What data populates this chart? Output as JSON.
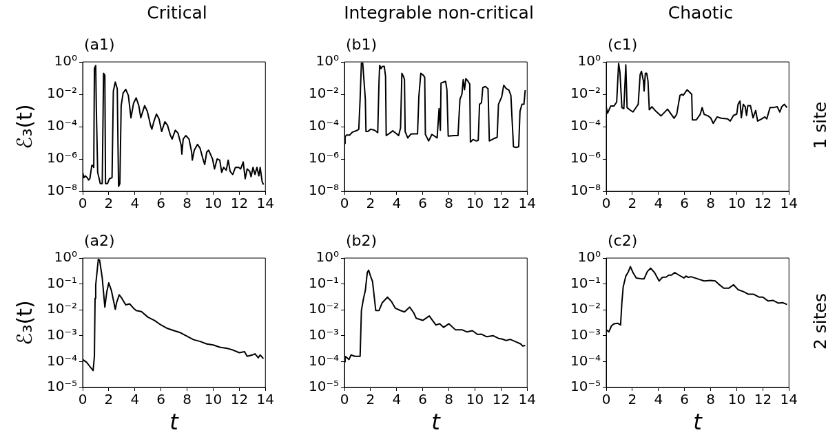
{
  "chart_data": [
    {
      "type": "line",
      "title": "Critical",
      "subtitle": "(a1)",
      "ylabel": "ℰ₃(t)",
      "log": "y",
      "marker": "none",
      "line_style": "solid",
      "xlim": [
        0,
        14
      ],
      "xticks": [
        0,
        2,
        4,
        6,
        8,
        10,
        12,
        14
      ],
      "ylim": [
        1e-08,
        1
      ],
      "yticks": [
        {
          "value": 1e-08,
          "label": "10⁻⁸"
        },
        {
          "value": 1e-06,
          "label": "10⁻⁶"
        },
        {
          "value": 0.0001,
          "label": "10⁻⁴"
        },
        {
          "value": 0.01,
          "label": "10⁻²"
        },
        {
          "value": 1,
          "label": "10⁰"
        }
      ],
      "series": [
        {
          "color": "#000000",
          "x": [
            0,
            0.1,
            0.2,
            0.35,
            0.45,
            0.55,
            0.7,
            0.75,
            0.85,
            0.9,
            1.0,
            1.05,
            1.15,
            1.35,
            1.5,
            1.6,
            1.7,
            1.75,
            1.9,
            2.05,
            2.25,
            2.35,
            2.5,
            2.65,
            2.75,
            2.85,
            2.95,
            3.1,
            3.3,
            3.5,
            3.7,
            3.9,
            4.1,
            4.3,
            4.45,
            4.75,
            4.95,
            5.2,
            5.3,
            5.45,
            5.65,
            5.85,
            6.05,
            6.3,
            6.5,
            6.7,
            6.85,
            7.1,
            7.3,
            7.55,
            7.6,
            7.7,
            7.9,
            8.15,
            8.35,
            8.4,
            8.55,
            8.8,
            9.0,
            9.2,
            9.35,
            9.5,
            9.65,
            9.95,
            10.1,
            10.3,
            10.5,
            10.65,
            10.8,
            11.0,
            11.15,
            11.3,
            11.5,
            11.7,
            11.95,
            12.1,
            12.3,
            12.45,
            12.6,
            12.8,
            12.9,
            13.05,
            13.2,
            13.35,
            13.5,
            13.6,
            13.75,
            13.85
          ],
          "values": [
            1.5e-07,
            7e-08,
            9e-08,
            7e-08,
            5e-08,
            6e-08,
            4e-07,
            4e-07,
            3e-07,
            0.4,
            0.6,
            0.001,
            1.5e-07,
            3e-08,
            3e-08,
            0.2,
            0.15,
            3e-08,
            3e-08,
            6e-08,
            7e-08,
            0.016,
            0.057,
            0.022,
            2e-08,
            3e-08,
            0.002,
            0.012,
            0.02,
            0.0086,
            0.00035,
            0.0028,
            0.006,
            0.002,
            0.00035,
            0.002,
            0.0009,
            0.00012,
            7e-05,
            0.0002,
            0.0006,
            0.0003,
            5e-05,
            0.0002,
            0.00012,
            3.3e-05,
            1.7e-05,
            6e-05,
            4e-05,
            7e-06,
            2e-06,
            1.7e-05,
            2.8e-05,
            1.7e-05,
            2.6e-06,
            8.5e-07,
            3.5e-06,
            8e-06,
            4.5e-06,
            1.1e-06,
            4.5e-07,
            2.6e-06,
            3.5e-06,
            1e-06,
            2.4e-07,
            1e-06,
            8.5e-07,
            1.5e-07,
            3e-07,
            2e-07,
            8.5e-07,
            1.7e-07,
            1.1e-07,
            3e-07,
            3e-07,
            2.4e-07,
            6.5e-07,
            6e-08,
            2.4e-07,
            1.7e-07,
            8e-08,
            3e-07,
            1.1e-07,
            3e-07,
            9e-08,
            3e-07,
            4e-08,
            2.6e-08
          ]
        }
      ]
    },
    {
      "type": "line",
      "title": "Integrable non-critical",
      "subtitle": "(b1)",
      "log": "y",
      "marker": "none",
      "line_style": "solid",
      "xlim": [
        0,
        14
      ],
      "xticks": [
        0,
        2,
        4,
        6,
        8,
        10,
        12,
        14
      ],
      "ylim": [
        1e-08,
        1
      ],
      "yticks": [
        {
          "value": 1e-08,
          "label": "10⁻⁸"
        },
        {
          "value": 1e-06,
          "label": "10⁻⁶"
        },
        {
          "value": 0.0001,
          "label": "10⁻⁴"
        },
        {
          "value": 0.01,
          "label": "10⁻²"
        },
        {
          "value": 1,
          "label": "10⁰"
        }
      ],
      "series": [
        {
          "color": "#000000",
          "x": [
            0,
            0.05,
            0.15,
            0.4,
            0.6,
            1.0,
            1.1,
            1.2,
            1.3,
            1.4,
            1.6,
            1.65,
            1.8,
            2.0,
            2.3,
            2.55,
            2.65,
            2.7,
            2.8,
            2.9,
            3.05,
            3.15,
            3.2,
            3.4,
            3.7,
            4.0,
            4.15,
            4.3,
            4.4,
            4.55,
            4.6,
            4.65,
            4.85,
            5.1,
            5.3,
            5.6,
            5.7,
            5.85,
            6.05,
            6.15,
            6.2,
            6.45,
            6.7,
            6.9,
            7.1,
            7.25,
            7.35,
            7.4,
            7.6,
            7.75,
            7.85,
            7.95,
            8.4,
            8.7,
            8.85,
            9.0,
            9.1,
            9.2,
            9.3,
            9.45,
            9.6,
            9.65,
            9.85,
            10.1,
            10.25,
            10.35,
            10.5,
            10.6,
            10.8,
            11.0,
            11.1,
            11.5,
            11.7,
            11.8,
            12.05,
            12.2,
            12.4,
            12.6,
            12.75,
            12.95,
            13.15,
            13.35,
            13.45,
            13.6,
            13.75,
            13.85
          ],
          "values": [
            9e-06,
            2.3e-05,
            3e-05,
            3e-05,
            4.5e-05,
            6e-05,
            7e-05,
            0.005,
            0.85,
            0.85,
            0.005,
            5e-05,
            5e-05,
            7e-05,
            6e-05,
            4.3e-05,
            0.067,
            0.62,
            0.39,
            0.53,
            0.53,
            0.13,
            2.8e-05,
            3.6e-05,
            5.5e-05,
            3.6e-05,
            2.8e-05,
            8.5e-05,
            0.2,
            0.11,
            0.08,
            5e-05,
            2e-05,
            3.5e-05,
            3.6e-05,
            3.6e-05,
            0.007,
            0.2,
            0.15,
            0.11,
            3.3e-05,
            1.3e-05,
            3.3e-05,
            2.6e-05,
            2e-05,
            0.0013,
            6e-05,
            0.05,
            0.057,
            0.063,
            0.019,
            2.6e-05,
            2.8e-05,
            2.8e-05,
            0.005,
            0.01,
            0.08,
            0.019,
            0.093,
            0.067,
            0.042,
            1.1e-05,
            1.6e-05,
            1.3e-05,
            1.4e-05,
            0.0024,
            0.003,
            0.026,
            0.03,
            0.022,
            1.3e-05,
            1.9e-05,
            2.2e-05,
            0.0024,
            0.007,
            0.036,
            0.022,
            0.018,
            0.0085,
            5.7e-06,
            5.2e-06,
            5.7e-06,
            0.0009,
            0.0024,
            0.0024,
            0.018
          ]
        }
      ]
    },
    {
      "type": "line",
      "title": "Chaotic",
      "subtitle": "(c1)",
      "annotations": [
        "1 site"
      ],
      "log": "y",
      "marker": "none",
      "line_style": "solid",
      "xlim": [
        0,
        14
      ],
      "xticks": [
        0,
        2,
        4,
        6,
        8,
        10,
        12,
        14
      ],
      "ylim": [
        1e-08,
        1
      ],
      "yticks": [
        {
          "value": 1e-08,
          "label": "10⁻⁸"
        },
        {
          "value": 1e-06,
          "label": "10⁻⁶"
        },
        {
          "value": 0.0001,
          "label": "10⁻⁴"
        },
        {
          "value": 0.01,
          "label": "10⁻²"
        },
        {
          "value": 1,
          "label": "10⁰"
        }
      ],
      "series": [
        {
          "color": "#000000",
          "x": [
            0,
            0.1,
            0.35,
            0.6,
            0.8,
            0.95,
            1.05,
            1.2,
            1.35,
            1.5,
            1.6,
            1.8,
            2.05,
            2.3,
            2.45,
            2.6,
            2.7,
            2.85,
            2.9,
            3.0,
            3.1,
            3.2,
            3.3,
            3.5,
            3.8,
            4.2,
            4.7,
            5.2,
            5.4,
            5.65,
            5.8,
            5.9,
            6.2,
            6.55,
            6.6,
            6.9,
            7.2,
            7.35,
            7.5,
            7.8,
            8.0,
            8.2,
            8.5,
            8.8,
            9.3,
            9.5,
            9.75,
            10.0,
            10.1,
            10.25,
            10.35,
            10.5,
            10.65,
            10.75,
            10.85,
            11.05,
            11.25,
            11.45,
            11.6,
            11.9,
            12.15,
            12.3,
            12.55,
            12.8,
            13.1,
            13.3,
            13.45,
            13.65,
            13.85
          ],
          "values": [
            0.0017,
            0.00067,
            0.0019,
            0.0019,
            0.0033,
            0.8,
            0.24,
            0.0015,
            0.0013,
            0.66,
            0.0015,
            0.0011,
            0.0008,
            0.0016,
            0.0024,
            0.17,
            0.26,
            0.067,
            0.016,
            0.2,
            0.2,
            0.067,
            0.0011,
            0.0017,
            0.0009,
            0.00046,
            0.0012,
            0.00033,
            0.00058,
            0.0086,
            0.01,
            0.0086,
            0.019,
            0.01,
            0.00026,
            0.00026,
            0.00058,
            0.0015,
            0.00058,
            0.00046,
            0.00035,
            0.00016,
            0.0004,
            0.00033,
            0.0003,
            0.00022,
            0.00049,
            0.0006,
            0.0024,
            0.0038,
            0.00035,
            0.0024,
            0.0017,
            0.00049,
            0.002,
            0.002,
            0.00035,
            0.001,
            0.00022,
            0.0003,
            0.0004,
            0.0003,
            0.0015,
            0.0015,
            0.0017,
            0.0008,
            0.0017,
            0.0024,
            0.0015
          ]
        }
      ]
    },
    {
      "type": "line",
      "subtitle": "(a2)",
      "ylabel": "ℰ₃(t)",
      "xlabel": "t",
      "log": "y",
      "marker": "none",
      "line_style": "solid",
      "xlim": [
        0,
        14
      ],
      "xticks": [
        0,
        2,
        4,
        6,
        8,
        10,
        12,
        14
      ],
      "ylim": [
        1e-05,
        1
      ],
      "yticks": [
        {
          "value": 1e-05,
          "label": "10⁻⁵"
        },
        {
          "value": 0.0001,
          "label": "10⁻⁴"
        },
        {
          "value": 0.001,
          "label": "10⁻³"
        },
        {
          "value": 0.01,
          "label": "10⁻²"
        },
        {
          "value": 0.1,
          "label": "10⁻¹"
        },
        {
          "value": 1,
          "label": "10⁰"
        }
      ],
      "series": [
        {
          "color": "#000000",
          "x": [
            0,
            0.3,
            0.6,
            0.8,
            0.9,
            0.95,
            1.0,
            1.2,
            1.3,
            1.5,
            1.7,
            1.85,
            2.0,
            2.2,
            2.5,
            2.6,
            2.8,
            3.0,
            3.3,
            3.6,
            3.9,
            4.1,
            4.5,
            5.0,
            5.5,
            6.0,
            6.5,
            7.0,
            7.5,
            8.0,
            8.5,
            9.0,
            9.5,
            10.0,
            10.5,
            11.0,
            11.5,
            12.0,
            12.4,
            12.6,
            13.0,
            13.2,
            13.45,
            13.6,
            13.85
          ],
          "values": [
            0.00012,
            9.4e-05,
            6e-05,
            4.5e-05,
            0.00016,
            0.028,
            0.093,
            0.9,
            0.82,
            0.17,
            0.0127,
            0.05,
            0.11,
            0.056,
            0.0104,
            0.019,
            0.038,
            0.028,
            0.0155,
            0.017,
            0.0115,
            0.0094,
            0.0086,
            0.0052,
            0.0039,
            0.0026,
            0.0019,
            0.00157,
            0.0013,
            0.00095,
            0.0007,
            0.0006,
            0.00048,
            0.00044,
            0.00036,
            0.00033,
            0.00028,
            0.00022,
            0.00024,
            0.00016,
            0.00018,
            0.0002,
            0.00014,
            0.00018,
            0.00013
          ]
        }
      ]
    },
    {
      "type": "line",
      "subtitle": "(b2)",
      "xlabel": "t",
      "log": "y",
      "marker": "none",
      "line_style": "solid",
      "xlim": [
        0,
        14
      ],
      "xticks": [
        0,
        2,
        4,
        6,
        8,
        10,
        12,
        14
      ],
      "ylim": [
        1e-05,
        1
      ],
      "yticks": [
        {
          "value": 1e-05,
          "label": "10⁻⁵"
        },
        {
          "value": 0.0001,
          "label": "10⁻⁴"
        },
        {
          "value": 0.001,
          "label": "10⁻³"
        },
        {
          "value": 0.01,
          "label": "10⁻²"
        },
        {
          "value": 0.1,
          "label": "10⁻¹"
        },
        {
          "value": 1,
          "label": "10⁰"
        }
      ],
      "series": [
        {
          "color": "#000000",
          "x": [
            0,
            0.05,
            0.2,
            0.35,
            0.5,
            0.8,
            1.2,
            1.3,
            1.45,
            1.6,
            1.75,
            1.85,
            2.0,
            2.15,
            2.4,
            2.65,
            2.9,
            3.3,
            3.6,
            3.9,
            4.3,
            4.6,
            5.0,
            5.3,
            5.5,
            6.0,
            6.5,
            7.0,
            7.3,
            7.6,
            8.0,
            8.5,
            9.0,
            9.4,
            9.8,
            10.2,
            10.5,
            10.9,
            11.4,
            11.8,
            12.1,
            12.4,
            12.7,
            13.1,
            13.5,
            13.65,
            13.85
          ],
          "values": [
            9.8e-05,
            0.00016,
            0.00014,
            0.00012,
            0.00018,
            0.00016,
            0.00016,
            0.0094,
            0.026,
            0.056,
            0.275,
            0.34,
            0.2,
            0.125,
            0.0094,
            0.0094,
            0.019,
            0.031,
            0.021,
            0.0115,
            0.0094,
            0.0083,
            0.0127,
            0.0078,
            0.0047,
            0.0039,
            0.0058,
            0.0026,
            0.0029,
            0.0021,
            0.0029,
            0.0017,
            0.0017,
            0.0014,
            0.00157,
            0.00112,
            0.00115,
            0.00091,
            0.001,
            0.00079,
            0.00074,
            0.00065,
            0.00072,
            0.00059,
            0.00048,
            0.0004,
            0.00042
          ]
        }
      ]
    },
    {
      "type": "line",
      "subtitle": "(c2)",
      "xlabel": "t",
      "annotations": [
        "2 sites"
      ],
      "log": "y",
      "marker": "none",
      "line_style": "solid",
      "xlim": [
        0,
        14
      ],
      "xticks": [
        0,
        2,
        4,
        6,
        8,
        10,
        12,
        14
      ],
      "ylim": [
        1e-05,
        1
      ],
      "yticks": [
        {
          "value": 1e-05,
          "label": "10⁻⁵"
        },
        {
          "value": 0.0001,
          "label": "10⁻⁴"
        },
        {
          "value": 0.001,
          "label": "10⁻³"
        },
        {
          "value": 0.01,
          "label": "10⁻²"
        },
        {
          "value": 0.1,
          "label": "10⁻¹"
        },
        {
          "value": 1,
          "label": "10⁰"
        }
      ],
      "series": [
        {
          "color": "#000000",
          "x": [
            0,
            0.2,
            0.4,
            0.6,
            0.9,
            1.1,
            1.2,
            1.3,
            1.5,
            1.7,
            1.85,
            2.05,
            2.3,
            2.7,
            2.9,
            3.15,
            3.4,
            3.7,
            4.05,
            4.3,
            4.6,
            4.8,
            5.0,
            5.25,
            5.5,
            5.95,
            6.1,
            6.3,
            6.5,
            7.0,
            7.5,
            8.0,
            8.35,
            8.6,
            9.0,
            9.4,
            9.75,
            10.1,
            10.5,
            10.9,
            11.3,
            11.7,
            12.0,
            12.4,
            12.8,
            13.2,
            13.5,
            13.85
          ],
          "values": [
            0.0017,
            0.0014,
            0.0024,
            0.0029,
            0.003,
            0.0026,
            0.019,
            0.076,
            0.2,
            0.3,
            0.47,
            0.276,
            0.17,
            0.158,
            0.158,
            0.3,
            0.41,
            0.276,
            0.13,
            0.18,
            0.185,
            0.22,
            0.22,
            0.276,
            0.23,
            0.17,
            0.2,
            0.18,
            0.19,
            0.158,
            0.13,
            0.137,
            0.13,
            0.1,
            0.069,
            0.069,
            0.093,
            0.06,
            0.051,
            0.04,
            0.04,
            0.031,
            0.031,
            0.022,
            0.023,
            0.018,
            0.019,
            0.0162
          ]
        }
      ]
    }
  ]
}
